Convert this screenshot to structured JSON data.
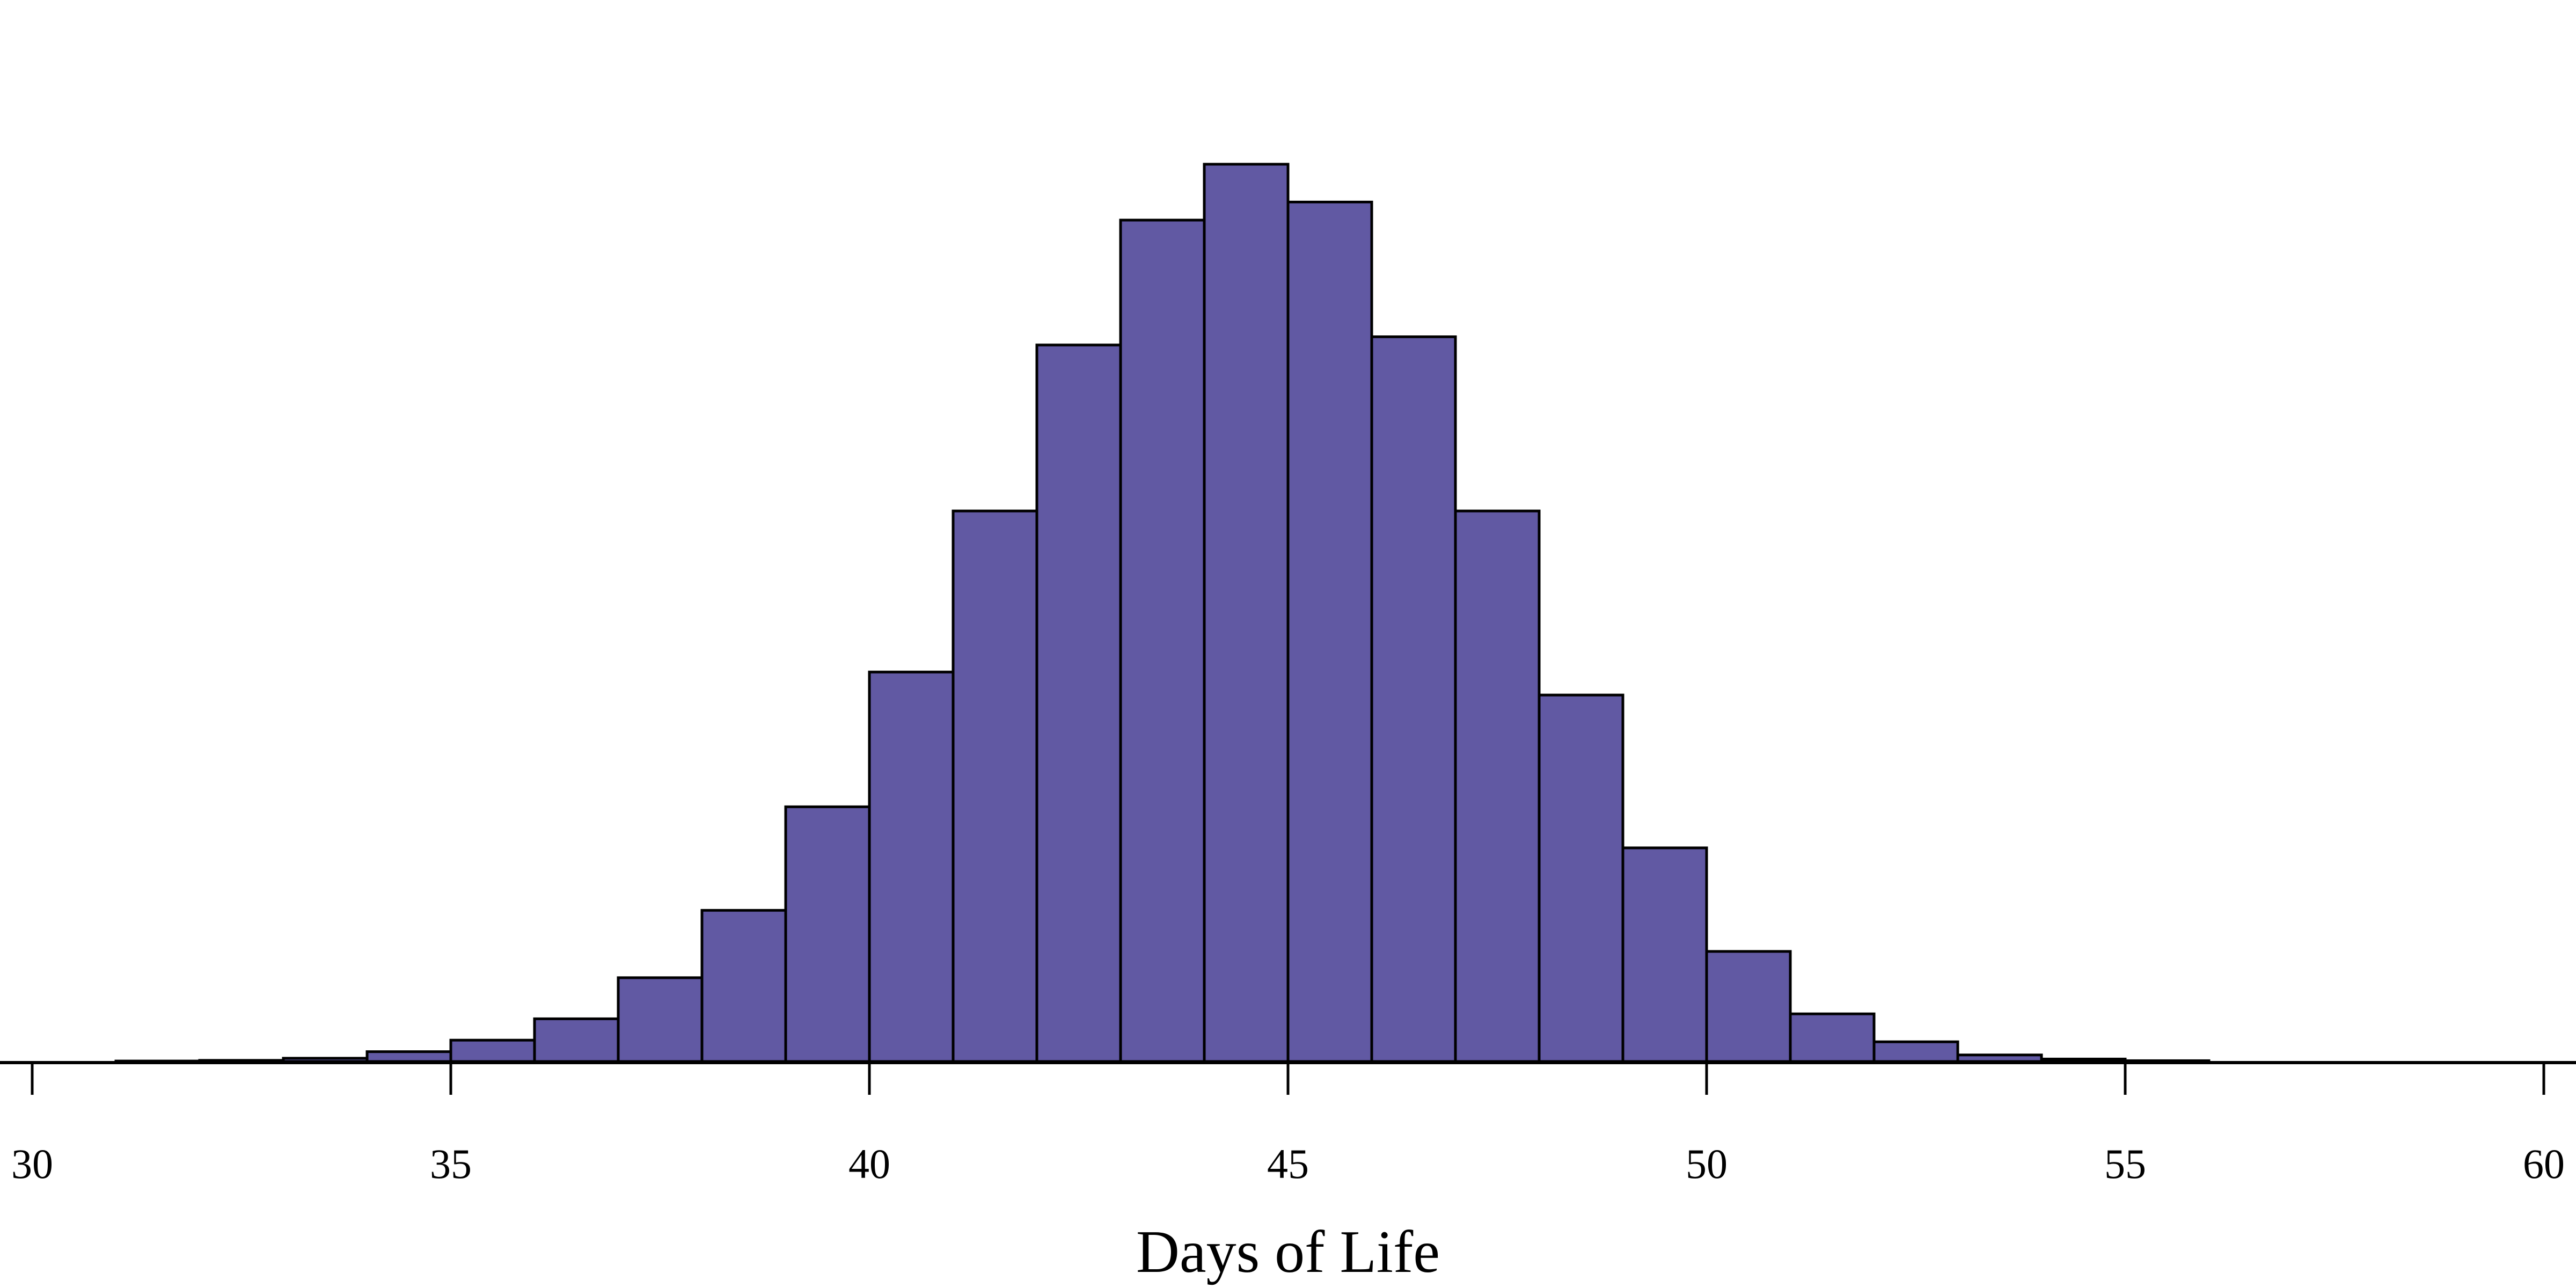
{
  "chart_data": {
    "type": "bar",
    "subtype": "histogram",
    "title": "",
    "xlabel": "Days of Life",
    "ylabel": "",
    "xlim": [
      30,
      60
    ],
    "x_ticks": [
      30,
      35,
      40,
      45,
      50,
      55,
      60
    ],
    "bin_width": 1,
    "bins": [
      31,
      32,
      33,
      34,
      35,
      36,
      37,
      38,
      39,
      40,
      41,
      42,
      43,
      44,
      45,
      46,
      47,
      48,
      49,
      50,
      51,
      52,
      53,
      54,
      55
    ],
    "values": [
      0.3,
      0.7,
      2,
      6,
      13,
      26,
      51,
      92,
      155,
      237,
      335,
      436,
      512,
      546,
      523,
      441,
      335,
      223,
      130,
      67,
      29,
      12,
      4,
      1.5,
      0.5
    ],
    "values_note": "relative bar heights (no y-axis shown)",
    "bar_fill": "#6159a3",
    "bar_edge": "#000000",
    "grid": false,
    "legend": null
  }
}
